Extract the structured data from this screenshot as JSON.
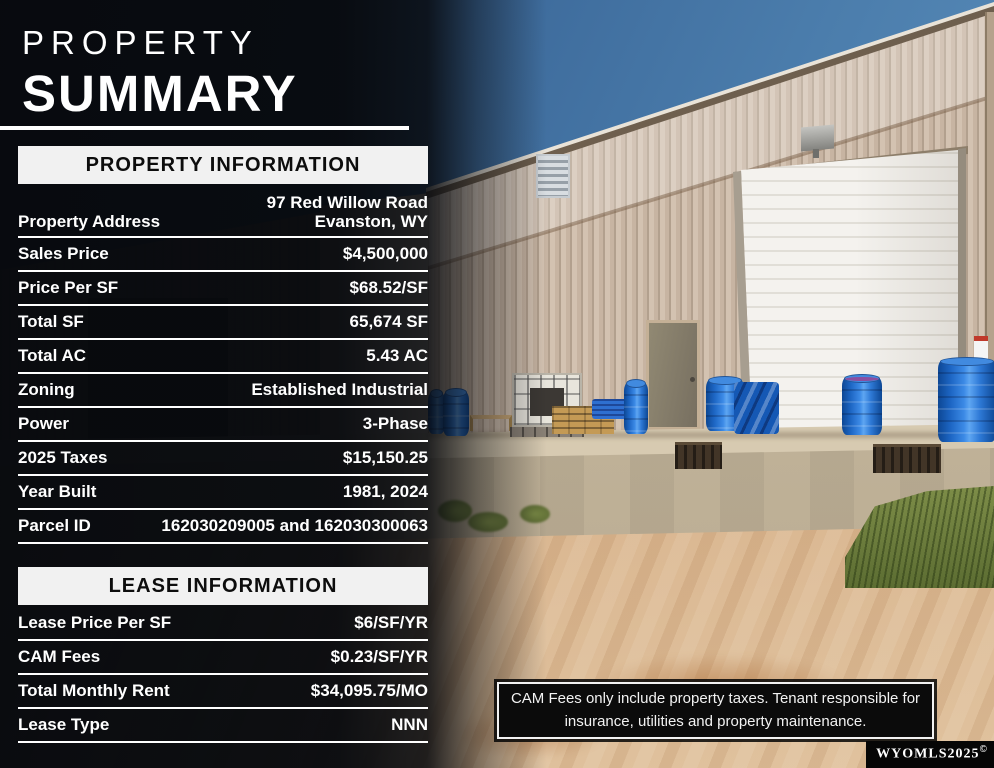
{
  "title": {
    "line1": "PROPERTY",
    "line2": "SUMMARY"
  },
  "property_information": {
    "header": "PROPERTY INFORMATION",
    "rows": [
      {
        "label": "Property Address",
        "value": "97 Red Willow Road\nEvanston, WY"
      },
      {
        "label": "Sales Price",
        "value": "$4,500,000"
      },
      {
        "label": "Price Per SF",
        "value": "$68.52/SF"
      },
      {
        "label": "Total SF",
        "value": "65,674 SF"
      },
      {
        "label": "Total AC",
        "value": "5.43 AC"
      },
      {
        "label": "Zoning",
        "value": "Established Industrial"
      },
      {
        "label": "Power",
        "value": "3-Phase"
      },
      {
        "label": "2025 Taxes",
        "value": "$15,150.25"
      },
      {
        "label": "Year Built",
        "value": "1981, 2024"
      },
      {
        "label": "Parcel ID",
        "value": "162030209005 and 162030300063"
      }
    ]
  },
  "lease_information": {
    "header": "LEASE INFORMATION",
    "rows": [
      {
        "label": "Lease Price Per SF",
        "value": "$6/SF/YR"
      },
      {
        "label": "CAM Fees",
        "value": "$0.23/SF/YR"
      },
      {
        "label": "Total Monthly Rent",
        "value": "$34,095.75/MO"
      },
      {
        "label": "Lease Type",
        "value": "NNN"
      }
    ]
  },
  "note": {
    "line1": "CAM Fees only include property taxes. Tenant responsible for",
    "line2": "insurance, utilities and property maintenance."
  },
  "watermark": {
    "text": "WYOMLS2025",
    "symbol": "©"
  },
  "photo": {
    "description": "Tan metal industrial warehouse with white roll-up dock door, gray service door, concrete loading dock with blue plastic barrels, IBC tote and wooden pallets, dirt driveway in foreground"
  },
  "colors": {
    "section_header_bg": "#f1f1f1",
    "section_header_text": "#0d0d0d",
    "table_text": "#ffffff",
    "overlay_dark": "#07090d",
    "sky_blue": "#4b80b4",
    "wall_tan": "#cbb9a9",
    "barrel_blue": "#1d66c4",
    "note_bg": "#0b0b0b"
  }
}
